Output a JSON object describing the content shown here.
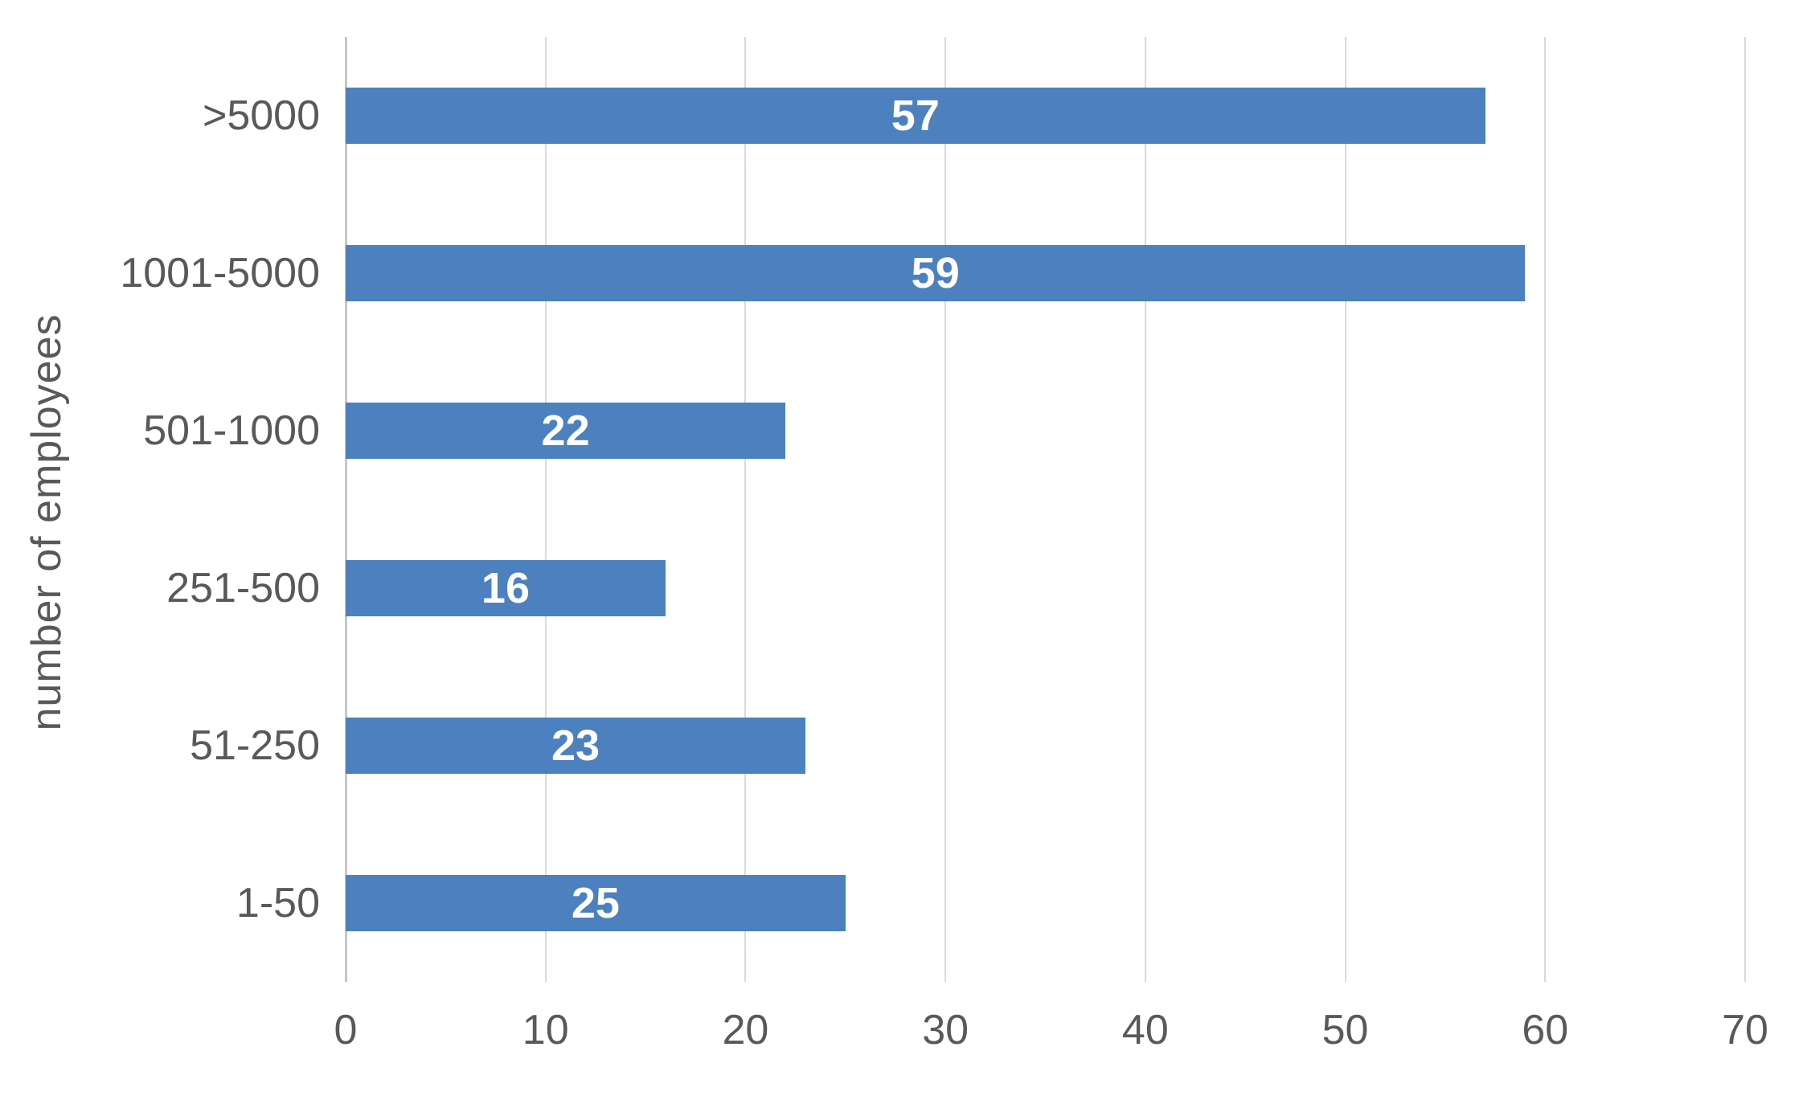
{
  "chart_data": {
    "type": "bar",
    "orientation": "horizontal",
    "title": "",
    "xlabel": "",
    "ylabel": "number of employees",
    "categories": [
      ">5000",
      "1001-5000",
      "501-1000",
      "251-500",
      "51-250",
      "1-50"
    ],
    "values": [
      57,
      59,
      22,
      16,
      23,
      25
    ],
    "value_labels": [
      "57",
      "59",
      "22",
      "16",
      "23",
      "25"
    ],
    "xlim": [
      0,
      70
    ],
    "x_ticks": [
      "0",
      "10",
      "20",
      "30",
      "40",
      "50",
      "60",
      "70"
    ],
    "grid": true,
    "legend": "none",
    "colors": {
      "bar_fill": "#4d80be",
      "value_label_text": "#ffffff",
      "axis_text": "#595959",
      "gridline": "#d9d9d9",
      "background": "#ffffff"
    }
  }
}
